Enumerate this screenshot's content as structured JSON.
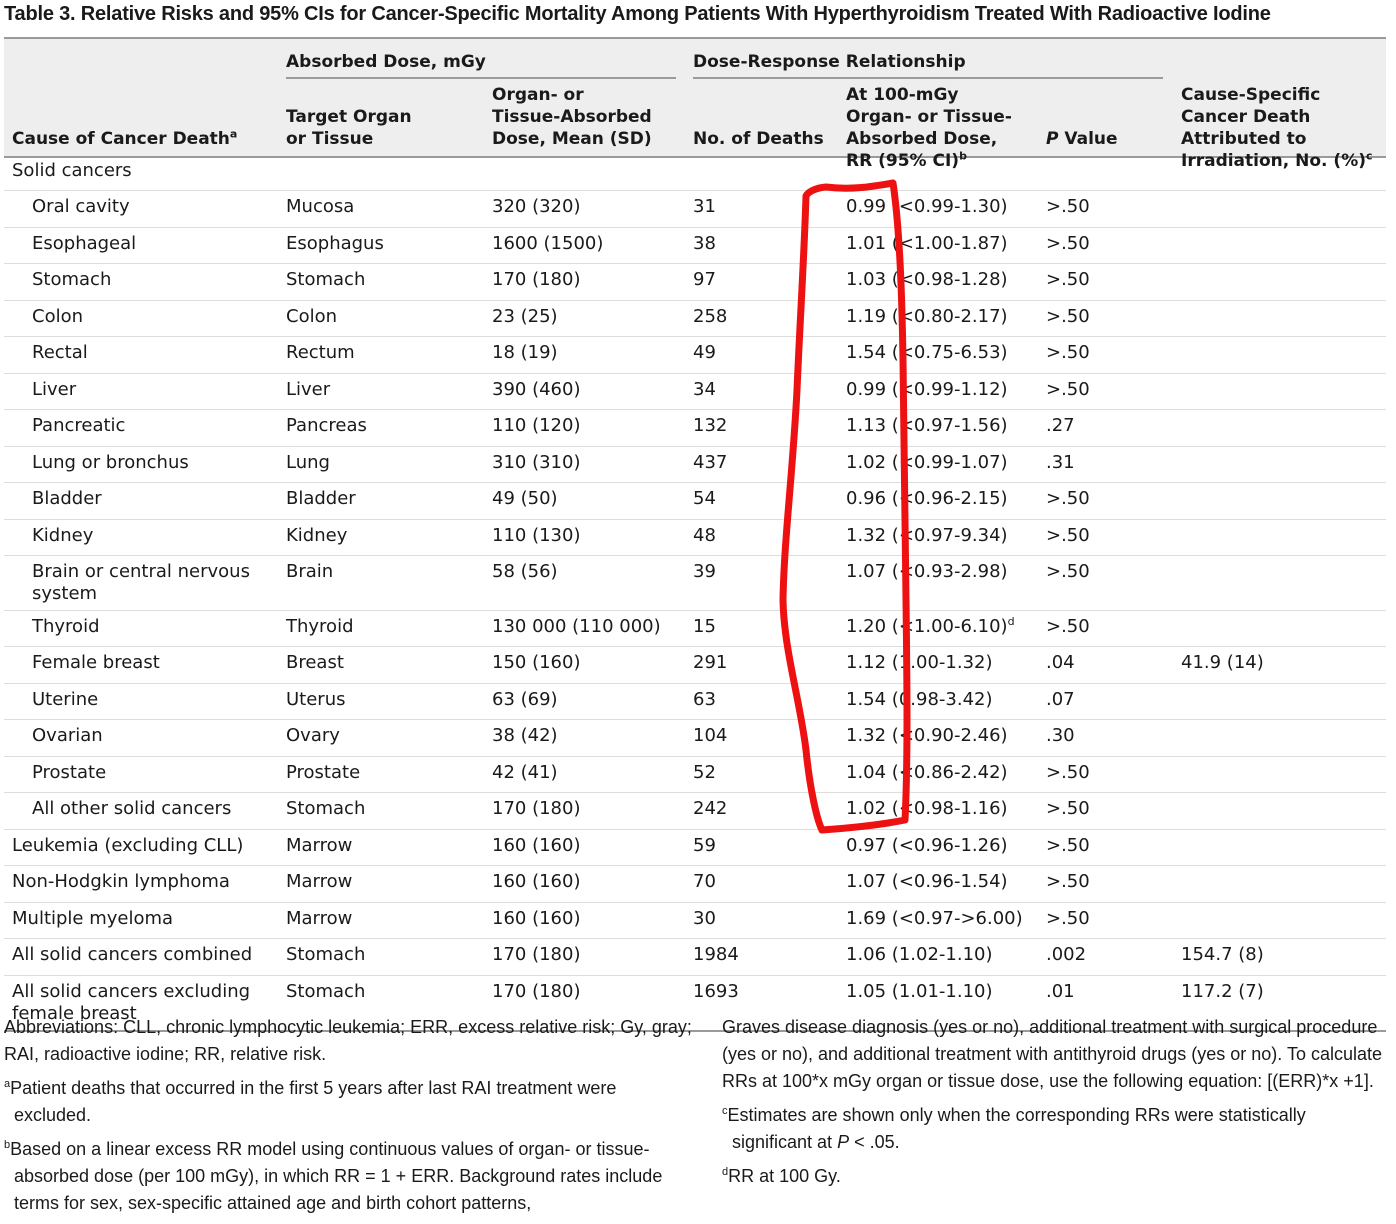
{
  "title": "Table 3. Relative Risks and 95% CIs for Cancer-Specific Mortality Among Patients With Hyperthyroidism Treated With Radioactive Iodine",
  "header": {
    "group_absorbed": "Absorbed Dose, mGy",
    "group_dose_response": "Dose-Response Relationship",
    "col_cause": "Cause of Cancer Death",
    "col_cause_sup": "a",
    "col_target": "Target Organ or Tissue",
    "col_dose": "Organ- or Tissue-Absorbed Dose, Mean (SD)",
    "col_deaths": "No. of Deaths",
    "col_rr": "At 100-mGy Organ- or Tissue-Absorbed Dose, RR (95% CI)",
    "col_rr_sup": "b",
    "col_p_italic": "P",
    "col_p_rest": " Value",
    "col_attrib": "Cause-Specific Cancer Death Attributed to Irradiation, No. (%)",
    "col_attrib_sup": "c"
  },
  "rows": [
    {
      "cause": "Solid cancers",
      "target": "",
      "dose": "",
      "deaths": "",
      "rr": "",
      "rr_sup": "",
      "p": "",
      "attrib": ""
    },
    {
      "cause": "Oral cavity",
      "target": "Mucosa",
      "dose": "320 (320)",
      "deaths": "31",
      "rr": "0.99 (<0.99-1.30)",
      "rr_sup": "",
      "p": ">.50",
      "attrib": ""
    },
    {
      "cause": "Esophageal",
      "target": "Esophagus",
      "dose": "1600 (1500)",
      "deaths": "38",
      "rr": "1.01 (<1.00-1.87)",
      "rr_sup": "",
      "p": ">.50",
      "attrib": ""
    },
    {
      "cause": "Stomach",
      "target": "Stomach",
      "dose": "170 (180)",
      "deaths": "97",
      "rr": "1.03 (<0.98-1.28)",
      "rr_sup": "",
      "p": ">.50",
      "attrib": ""
    },
    {
      "cause": "Colon",
      "target": "Colon",
      "dose": "23 (25)",
      "deaths": "258",
      "rr": "1.19 (<0.80-2.17)",
      "rr_sup": "",
      "p": ">.50",
      "attrib": ""
    },
    {
      "cause": "Rectal",
      "target": "Rectum",
      "dose": "18 (19)",
      "deaths": "49",
      "rr": "1.54 (<0.75-6.53)",
      "rr_sup": "",
      "p": ">.50",
      "attrib": ""
    },
    {
      "cause": "Liver",
      "target": "Liver",
      "dose": "390 (460)",
      "deaths": "34",
      "rr": "0.99 (<0.99-1.12)",
      "rr_sup": "",
      "p": ">.50",
      "attrib": ""
    },
    {
      "cause": "Pancreatic",
      "target": "Pancreas",
      "dose": "110 (120)",
      "deaths": "132",
      "rr": "1.13 (<0.97-1.56)",
      "rr_sup": "",
      "p": ".27",
      "attrib": ""
    },
    {
      "cause": "Lung or bronchus",
      "target": "Lung",
      "dose": "310 (310)",
      "deaths": "437",
      "rr": "1.02 (<0.99-1.07)",
      "rr_sup": "",
      "p": ".31",
      "attrib": ""
    },
    {
      "cause": "Bladder",
      "target": "Bladder",
      "dose": "49 (50)",
      "deaths": "54",
      "rr": "0.96 (<0.96-2.15)",
      "rr_sup": "",
      "p": ">.50",
      "attrib": ""
    },
    {
      "cause": "Kidney",
      "target": "Kidney",
      "dose": "110 (130)",
      "deaths": "48",
      "rr": "1.32 (<0.97-9.34)",
      "rr_sup": "",
      "p": ">.50",
      "attrib": ""
    },
    {
      "cause": "Brain or central nervous system",
      "target": "Brain",
      "dose": "58 (56)",
      "deaths": "39",
      "rr": "1.07 (<0.93-2.98)",
      "rr_sup": "",
      "p": ">.50",
      "attrib": ""
    },
    {
      "cause": "Thyroid",
      "target": "Thyroid",
      "dose": "130 000 (110 000)",
      "deaths": "15",
      "rr": "1.20 (<1.00-6.10)",
      "rr_sup": "d",
      "p": ">.50",
      "attrib": ""
    },
    {
      "cause": "Female breast",
      "target": "Breast",
      "dose": "150 (160)",
      "deaths": "291",
      "rr": "1.12 (1.00-1.32)",
      "rr_sup": "",
      "p": ".04",
      "attrib": "41.9 (14)"
    },
    {
      "cause": "Uterine",
      "target": "Uterus",
      "dose": "63 (69)",
      "deaths": "63",
      "rr": "1.54 (0.98-3.42)",
      "rr_sup": "",
      "p": ".07",
      "attrib": ""
    },
    {
      "cause": "Ovarian",
      "target": "Ovary",
      "dose": "38 (42)",
      "deaths": "104",
      "rr": "1.32 (<0.90-2.46)",
      "rr_sup": "",
      "p": ".30",
      "attrib": ""
    },
    {
      "cause": "Prostate",
      "target": "Prostate",
      "dose": "42 (41)",
      "deaths": "52",
      "rr": "1.04 (<0.86-2.42)",
      "rr_sup": "",
      "p": ">.50",
      "attrib": ""
    },
    {
      "cause": "All other solid cancers",
      "target": "Stomach",
      "dose": "170 (180)",
      "deaths": "242",
      "rr": "1.02 (<0.98-1.16)",
      "rr_sup": "",
      "p": ">.50",
      "attrib": ""
    },
    {
      "cause": "Leukemia (excluding CLL)",
      "target": "Marrow",
      "dose": "160 (160)",
      "deaths": "59",
      "rr": "0.97 (<0.96-1.26)",
      "rr_sup": "",
      "p": ">.50",
      "attrib": ""
    },
    {
      "cause": "Non-Hodgkin lymphoma",
      "target": "Marrow",
      "dose": "160 (160)",
      "deaths": "70",
      "rr": "1.07 (<0.96-1.54)",
      "rr_sup": "",
      "p": ">.50",
      "attrib": ""
    },
    {
      "cause": "Multiple myeloma",
      "target": "Marrow",
      "dose": "160 (160)",
      "deaths": "30",
      "rr": "1.69 (<0.97->6.00)",
      "rr_sup": "",
      "p": ">.50",
      "attrib": ""
    },
    {
      "cause": "All solid cancers combined",
      "target": "Stomach",
      "dose": "170 (180)",
      "deaths": "1984",
      "rr": "1.06 (1.02-1.10)",
      "rr_sup": "",
      "p": ".002",
      "attrib": "154.7 (8)"
    },
    {
      "cause": "All solid cancers excluding female breast",
      "target": "Stomach",
      "dose": "170 (180)",
      "deaths": "1693",
      "rr": "1.05 (1.01-1.10)",
      "rr_sup": "",
      "p": ".01",
      "attrib": "117.2 (7)"
    }
  ],
  "footnotes": {
    "abbreviations": "Abbreviations: CLL, chronic lymphocytic leukemia; ERR, excess relative risk; Gy, gray; RAI, radioactive iodine; RR, relative risk.",
    "a_mark": "a",
    "a": "Patient deaths that occurred in the first 5 years after last RAI treatment were excluded.",
    "b_mark": "b",
    "b": "Based on a linear excess RR model using continuous values of organ- or tissue-absorbed dose (per 100 mGy), in which RR = 1 + ERR. Background rates include terms for sex, sex-specific attained age and birth cohort patterns,",
    "b_cont": "Graves disease diagnosis (yes or no), additional treatment with surgical procedure (yes or no), and additional treatment with antithyroid drugs (yes or no). To calculate RRs at 100*x mGy organ or tissue dose, use the following equation: [(ERR)*x +1].",
    "c_mark": "c",
    "c_pre": "Estimates are shown only when the corresponding RRs were statistically significant at ",
    "c_p": "P",
    "c_post": " < .05.",
    "d_mark": "d",
    "d": "RR at 100 Gy."
  },
  "colors": {
    "annotation": "#ee1111",
    "header_bg": "#eeeeee",
    "rule": "#9a9a9a"
  }
}
